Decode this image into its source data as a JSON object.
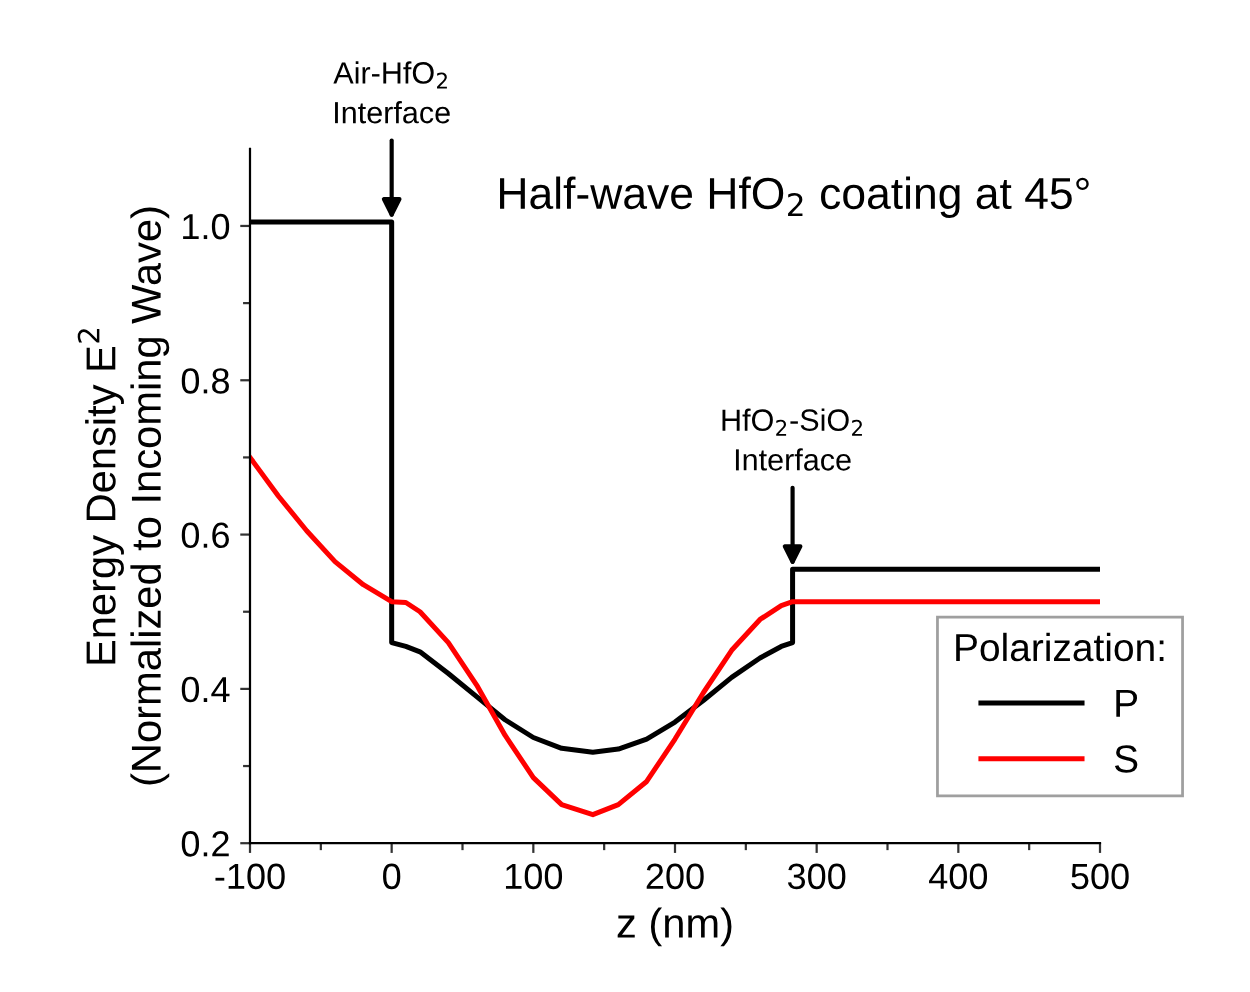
{
  "chart_data": {
    "type": "line",
    "title": "Half-wave HfO$_{2}$ coating at 45°",
    "xlabel": "z (nm)",
    "ylabel": "Energy Density E$^{2}$\n(Normalized to Incoming Wave)",
    "legend_title": "Polarization:",
    "legend": "bottom right",
    "grid": false,
    "line_style": "solid",
    "marker": "none",
    "xlim": [
      -100,
      500
    ],
    "ylim": [
      0.2,
      1.1
    ],
    "xticks": [
      -100,
      {
        "value": -50,
        "label": null
      },
      0,
      {
        "value": 50,
        "label": null
      },
      100,
      {
        "value": 150,
        "label": null
      },
      200,
      {
        "value": 250,
        "label": null
      },
      300,
      {
        "value": 350,
        "label": null
      },
      400,
      {
        "value": 450,
        "label": null
      },
      500
    ],
    "yticks": [
      0.2,
      {
        "value": 0.3,
        "label": null
      },
      0.4,
      {
        "value": 0.5,
        "label": null
      },
      0.6,
      {
        "value": 0.7,
        "label": null
      },
      0.8,
      {
        "value": 0.9,
        "label": null
      },
      {
        "value": 1.0,
        "label": "1.0"
      }
    ],
    "annotations": [
      {
        "text": "Air-HfO$_{2}$\nInterface",
        "x": 0,
        "y": 1.005
      },
      {
        "text": "HfO$_{2}$-SiO$_{2}$\nInterface",
        "x": 283,
        "y": 0.555
      }
    ],
    "series": [
      {
        "name": "P",
        "color": "#000000",
        "x": [
          -100,
          0,
          0,
          10,
          20,
          40,
          60,
          80,
          100,
          120,
          142,
          160,
          180,
          200,
          220,
          240,
          260,
          275,
          283,
          283,
          500
        ],
        "values": [
          1.005,
          1.005,
          0.46,
          0.455,
          0.448,
          0.42,
          0.39,
          0.36,
          0.337,
          0.323,
          0.318,
          0.322,
          0.335,
          0.357,
          0.385,
          0.415,
          0.44,
          0.455,
          0.46,
          0.555,
          0.555
        ]
      },
      {
        "name": "S",
        "color": "#ff0000",
        "x": [
          -100,
          -80,
          -60,
          -40,
          -20,
          0,
          10,
          20,
          40,
          60,
          80,
          100,
          120,
          142,
          160,
          180,
          200,
          220,
          240,
          260,
          275,
          283,
          500
        ],
        "values": [
          0.7,
          0.65,
          0.605,
          0.565,
          0.535,
          0.513,
          0.512,
          0.5,
          0.46,
          0.405,
          0.34,
          0.285,
          0.25,
          0.237,
          0.25,
          0.28,
          0.335,
          0.395,
          0.45,
          0.49,
          0.508,
          0.513,
          0.513
        ]
      }
    ]
  }
}
